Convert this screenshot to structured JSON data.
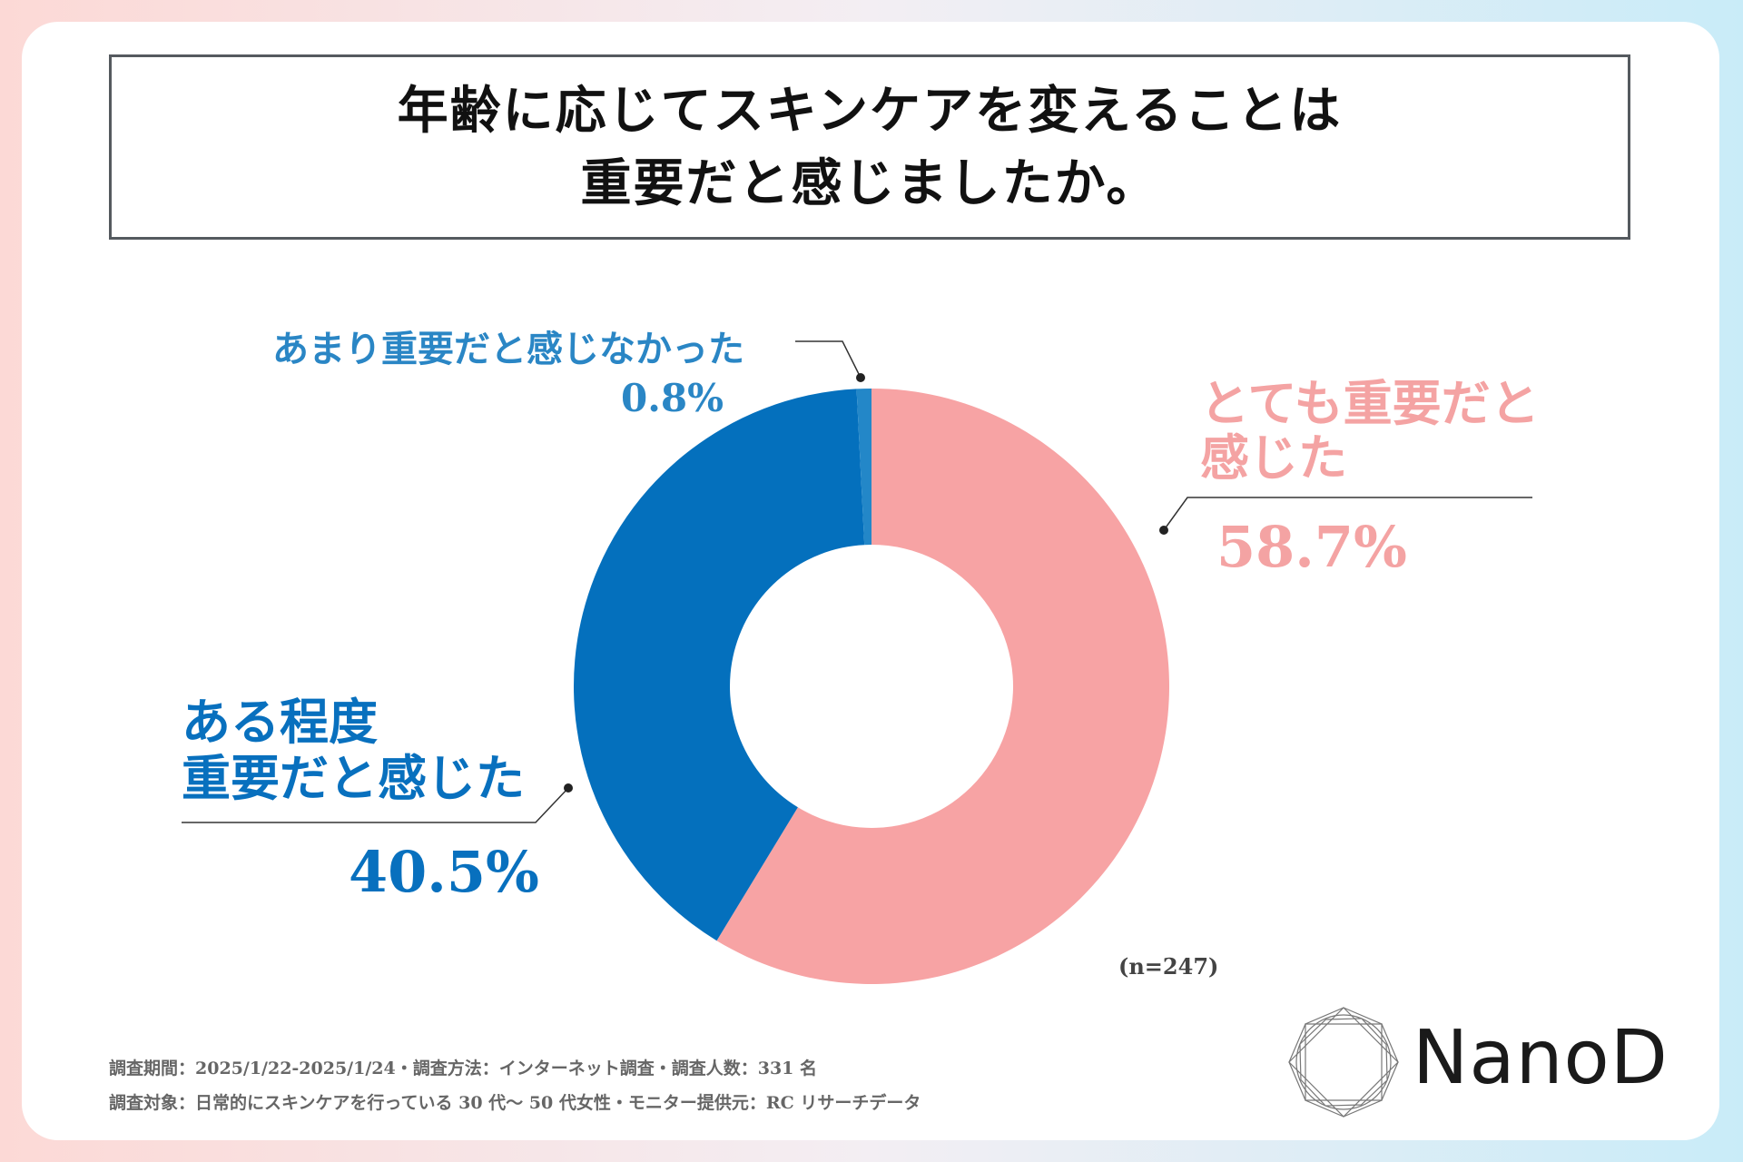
{
  "title": {
    "line1": "年齢に応じてスキンケアを変えることは",
    "line2": "重要だと感じましたか。"
  },
  "chart_data": {
    "type": "pie",
    "style": "donut",
    "title": "年齢に応じてスキンケアを変えることは重要だと感じましたか。",
    "slices": [
      {
        "label": "とても重要だと感じた",
        "value": 58.7,
        "color": "#f7a3a4"
      },
      {
        "label": "ある程度重要だと感じた",
        "value": 40.5,
        "color": "#0470bd"
      },
      {
        "label": "あまり重要だと感じなかった",
        "value": 0.8,
        "color": "#2387c8"
      }
    ],
    "labels": {
      "very_important_l1": "とても重要だと",
      "very_important_l2": "感じた",
      "very_important_pct": "58.7%",
      "somewhat_l1": "ある程度",
      "somewhat_l2": "重要だと感じた",
      "somewhat_pct": "40.5%",
      "not_much": "あまり重要だと感じなかった",
      "not_much_pct": "0.8%"
    },
    "sample_size": "(n=247)"
  },
  "footnotes": {
    "line1": "調査期間：2025/1/22-2025/1/24・調査方法：インターネット調査・調査人数：331 名",
    "line2": "調査対象：日常的にスキンケアを行っている 30 代～ 50 代女性・モニター提供元：RC リサーチデータ"
  },
  "logo": {
    "text": "NanoD"
  }
}
